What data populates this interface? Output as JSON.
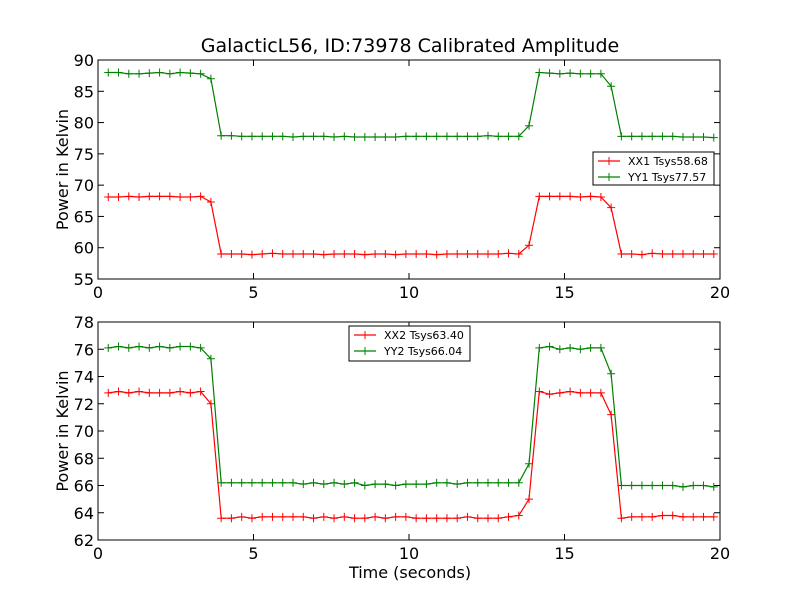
{
  "figure": {
    "title": "GalacticL56, ID:73978 Calibrated Amplitude",
    "xlabel": "Time (seconds)"
  },
  "chart_data": [
    {
      "type": "line",
      "ylabel": "Power in Kelvin",
      "xlim": [
        0,
        20
      ],
      "ylim": [
        55,
        90
      ],
      "xticks": [
        0,
        5,
        10,
        15,
        20
      ],
      "yticks": [
        55,
        60,
        65,
        70,
        75,
        80,
        85,
        90
      ],
      "grid": false,
      "legend": "center-right",
      "x": [
        0.33,
        0.66,
        0.99,
        1.32,
        1.65,
        1.98,
        2.31,
        2.64,
        2.97,
        3.3,
        3.63,
        3.96,
        4.29,
        4.62,
        4.95,
        5.28,
        5.61,
        5.94,
        6.27,
        6.6,
        6.93,
        7.26,
        7.59,
        7.92,
        8.25,
        8.58,
        8.91,
        9.24,
        9.57,
        9.9,
        10.23,
        10.56,
        10.89,
        11.22,
        11.55,
        11.88,
        12.21,
        12.54,
        12.87,
        13.2,
        13.53,
        13.86,
        14.19,
        14.52,
        14.85,
        15.18,
        15.51,
        15.84,
        16.17,
        16.5,
        16.83,
        17.16,
        17.49,
        17.82,
        18.15,
        18.48,
        18.81,
        19.14,
        19.47,
        19.8
      ],
      "series": [
        {
          "name": "XX1 Tsys58.68",
          "color": "#ff0000",
          "values": [
            68.1,
            68.1,
            68.2,
            68.1,
            68.2,
            68.2,
            68.2,
            68.1,
            68.1,
            68.2,
            67.3,
            59.0,
            59.0,
            59.0,
            58.9,
            59.0,
            59.1,
            59.0,
            59.0,
            59.0,
            59.0,
            58.9,
            59.0,
            59.0,
            59.0,
            58.9,
            59.0,
            59.0,
            58.9,
            59.0,
            59.0,
            59.0,
            58.9,
            59.0,
            59.0,
            59.0,
            59.0,
            59.0,
            59.0,
            59.1,
            59.0,
            60.4,
            68.2,
            68.2,
            68.2,
            68.2,
            68.1,
            68.2,
            68.1,
            66.4,
            59.0,
            59.0,
            58.9,
            59.1,
            59.0,
            59.0,
            59.0,
            59.0,
            59.0,
            59.0
          ]
        },
        {
          "name": "YY1 Tsys77.57",
          "color": "#008000",
          "values": [
            88.0,
            88.0,
            87.8,
            87.8,
            87.9,
            88.0,
            87.8,
            88.0,
            87.9,
            87.8,
            87.0,
            77.9,
            77.9,
            77.8,
            77.8,
            77.8,
            77.8,
            77.8,
            77.7,
            77.8,
            77.8,
            77.8,
            77.7,
            77.8,
            77.7,
            77.7,
            77.7,
            77.7,
            77.7,
            77.8,
            77.8,
            77.8,
            77.8,
            77.8,
            77.8,
            77.8,
            77.8,
            77.9,
            77.8,
            77.8,
            77.8,
            79.5,
            88.0,
            87.9,
            87.8,
            87.9,
            87.8,
            87.8,
            87.8,
            85.8,
            77.8,
            77.8,
            77.8,
            77.8,
            77.8,
            77.8,
            77.7,
            77.7,
            77.7,
            77.6
          ]
        }
      ]
    },
    {
      "type": "line",
      "ylabel": "Power in Kelvin",
      "xlabel": "Time (seconds)",
      "xlim": [
        0,
        20
      ],
      "ylim": [
        62,
        78
      ],
      "xticks": [
        0,
        5,
        10,
        15,
        20
      ],
      "yticks": [
        62,
        64,
        66,
        68,
        70,
        72,
        74,
        76,
        78
      ],
      "grid": false,
      "legend": "top-center",
      "x": [
        0.33,
        0.66,
        0.99,
        1.32,
        1.65,
        1.98,
        2.31,
        2.64,
        2.97,
        3.3,
        3.63,
        3.96,
        4.29,
        4.62,
        4.95,
        5.28,
        5.61,
        5.94,
        6.27,
        6.6,
        6.93,
        7.26,
        7.59,
        7.92,
        8.25,
        8.58,
        8.91,
        9.24,
        9.57,
        9.9,
        10.23,
        10.56,
        10.89,
        11.22,
        11.55,
        11.88,
        12.21,
        12.54,
        12.87,
        13.2,
        13.53,
        13.86,
        14.19,
        14.52,
        14.85,
        15.18,
        15.51,
        15.84,
        16.17,
        16.5,
        16.83,
        17.16,
        17.49,
        17.82,
        18.15,
        18.48,
        18.81,
        19.14,
        19.47,
        19.8
      ],
      "series": [
        {
          "name": "XX2 Tsys63.40",
          "color": "#ff0000",
          "values": [
            72.8,
            72.9,
            72.8,
            72.9,
            72.8,
            72.8,
            72.8,
            72.9,
            72.8,
            72.9,
            72.0,
            63.6,
            63.6,
            63.7,
            63.6,
            63.7,
            63.7,
            63.7,
            63.7,
            63.7,
            63.6,
            63.7,
            63.6,
            63.7,
            63.6,
            63.6,
            63.7,
            63.6,
            63.7,
            63.7,
            63.6,
            63.6,
            63.6,
            63.6,
            63.6,
            63.7,
            63.6,
            63.6,
            63.6,
            63.7,
            63.8,
            65.0,
            72.9,
            72.7,
            72.8,
            72.9,
            72.8,
            72.8,
            72.8,
            71.2,
            63.6,
            63.7,
            63.7,
            63.7,
            63.8,
            63.8,
            63.7,
            63.7,
            63.7,
            63.7
          ]
        },
        {
          "name": "YY2 Tsys66.04",
          "color": "#008000",
          "values": [
            76.1,
            76.2,
            76.1,
            76.2,
            76.1,
            76.2,
            76.1,
            76.2,
            76.2,
            76.1,
            75.3,
            66.2,
            66.2,
            66.2,
            66.2,
            66.2,
            66.2,
            66.2,
            66.2,
            66.1,
            66.2,
            66.1,
            66.2,
            66.1,
            66.2,
            66.0,
            66.1,
            66.1,
            66.0,
            66.1,
            66.1,
            66.1,
            66.2,
            66.2,
            66.1,
            66.2,
            66.2,
            66.2,
            66.2,
            66.2,
            66.2,
            67.6,
            76.1,
            76.2,
            76.0,
            76.1,
            76.0,
            76.1,
            76.1,
            74.2,
            66.0,
            66.0,
            66.0,
            66.0,
            66.0,
            66.0,
            65.9,
            66.0,
            66.0,
            65.9
          ]
        }
      ]
    }
  ]
}
